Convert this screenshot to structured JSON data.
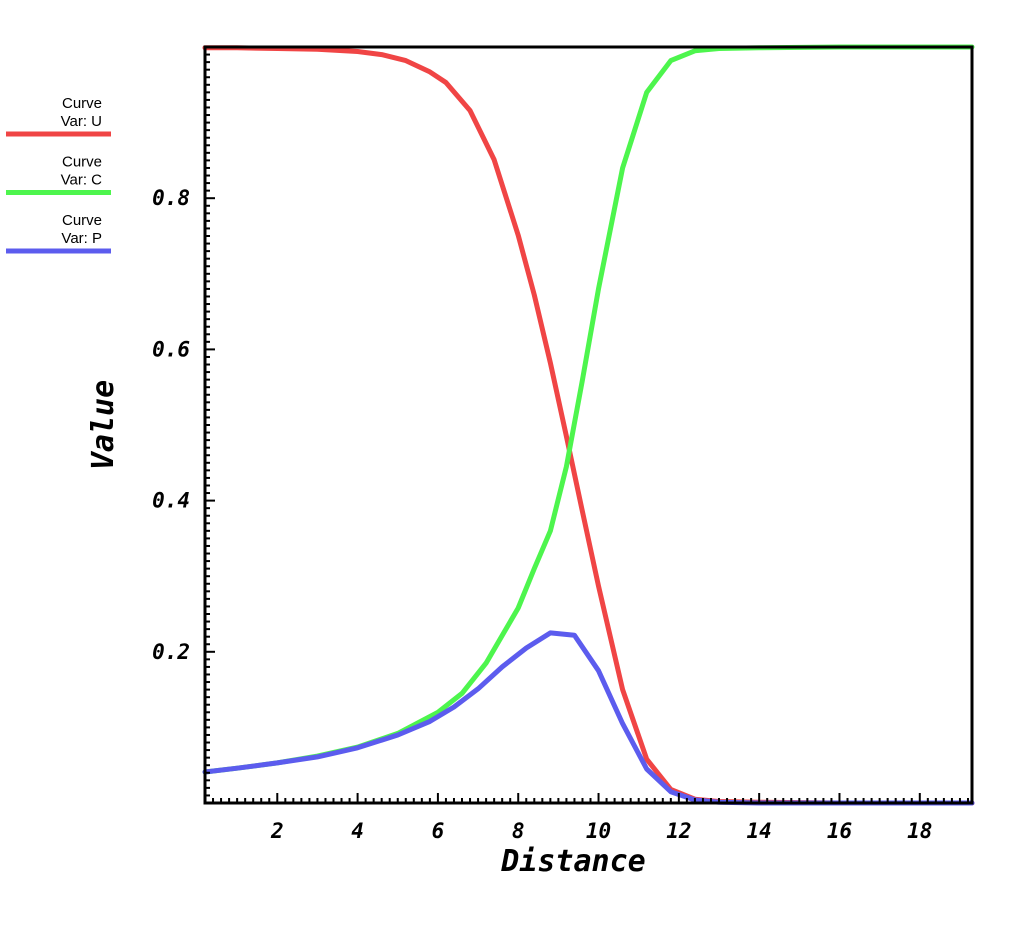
{
  "chart_data": {
    "type": "line",
    "xlabel": "Distance",
    "ylabel": "Value",
    "xlim": [
      0.2,
      19.3
    ],
    "ylim": [
      0.0,
      1.0
    ],
    "x_ticks": [
      2,
      4,
      6,
      8,
      10,
      12,
      14,
      16,
      18
    ],
    "y_ticks": [
      0.2,
      0.4,
      0.6,
      0.8
    ],
    "y_tick_labels": [
      "0.2",
      "0.4",
      "0.6",
      "0.8"
    ],
    "grid": false,
    "legend_position": "top-left outside plot",
    "series": [
      {
        "legend_title": "Curve",
        "name": "Var: U",
        "color": "#f04545",
        "x": [
          0.2,
          1.0,
          2.0,
          3.0,
          4.0,
          4.6,
          5.2,
          5.8,
          6.2,
          6.8,
          7.4,
          8.0,
          8.4,
          8.8,
          9.2,
          9.6,
          10.0,
          10.6,
          11.2,
          11.8,
          12.4,
          13.0,
          14.0,
          16.0,
          19.3
        ],
        "y": [
          0.999,
          0.999,
          0.998,
          0.997,
          0.994,
          0.99,
          0.982,
          0.967,
          0.953,
          0.916,
          0.851,
          0.751,
          0.672,
          0.582,
          0.485,
          0.385,
          0.287,
          0.15,
          0.058,
          0.018,
          0.005,
          0.002,
          0.001,
          0.0,
          0.0
        ]
      },
      {
        "legend_title": "Curve",
        "name": "Var: C",
        "color": "#4df54d",
        "x": [
          0.2,
          1.0,
          2.0,
          3.0,
          4.0,
          5.0,
          6.0,
          6.6,
          7.2,
          8.0,
          8.4,
          8.8,
          9.2,
          9.6,
          10.0,
          10.6,
          11.2,
          11.8,
          12.4,
          13.0,
          14.0,
          16.0,
          19.3
        ],
        "y": [
          0.041,
          0.046,
          0.053,
          0.062,
          0.074,
          0.092,
          0.12,
          0.145,
          0.185,
          0.258,
          0.31,
          0.36,
          0.445,
          0.56,
          0.68,
          0.84,
          0.94,
          0.982,
          0.995,
          0.998,
          0.999,
          1.0,
          1.0
        ]
      },
      {
        "legend_title": "Curve",
        "name": "Var: P",
        "color": "#5c5cee",
        "x": [
          0.2,
          1.0,
          2.0,
          3.0,
          4.0,
          5.0,
          5.8,
          6.4,
          7.0,
          7.6,
          8.2,
          8.8,
          9.4,
          10.0,
          10.6,
          11.2,
          11.8,
          12.4,
          13.0,
          14.0,
          16.0,
          19.3
        ],
        "y": [
          0.041,
          0.046,
          0.053,
          0.061,
          0.073,
          0.09,
          0.108,
          0.127,
          0.151,
          0.18,
          0.205,
          0.225,
          0.222,
          0.175,
          0.105,
          0.045,
          0.015,
          0.004,
          0.001,
          0.0,
          0.0,
          0.0
        ]
      }
    ]
  }
}
